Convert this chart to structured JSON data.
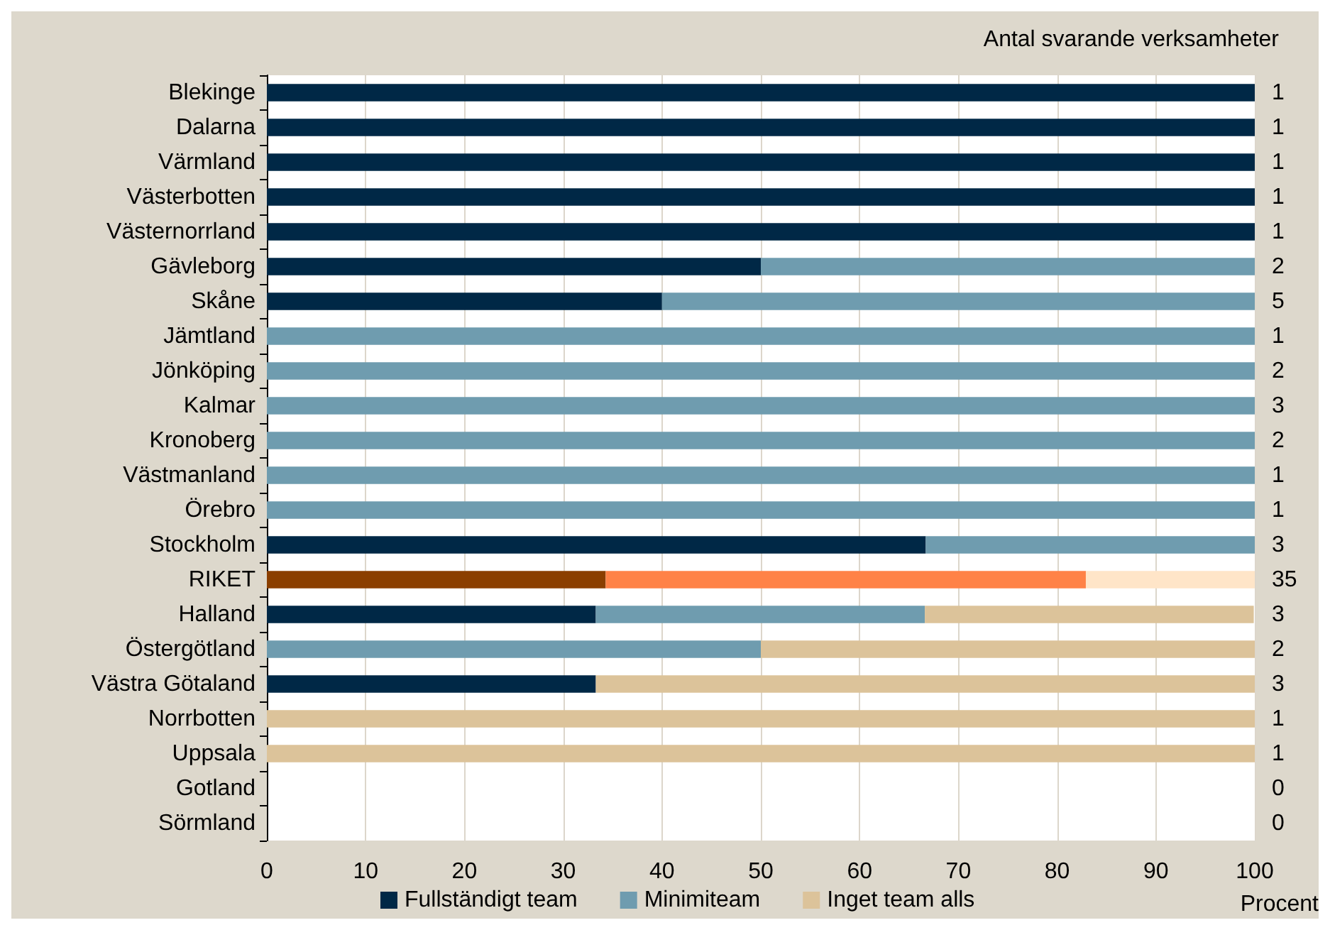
{
  "chart_data": {
    "type": "bar",
    "orientation": "horizontal",
    "stacked": true,
    "y2label": "Antal svarande verksamheter",
    "xlabel": "Procent",
    "categories": [
      "Blekinge",
      "Dalarna",
      "Värmland",
      "Västerbotten",
      "Västernorrland",
      "Gävleborg",
      "Skåne",
      "Jämtland",
      "Jönköping",
      "Kalmar",
      "Kronoberg",
      "Västmanland",
      "Örebro",
      "Stockholm",
      "RIKET",
      "Halland",
      "Östergötland",
      "Västra Götaland",
      "Norrbotten",
      "Uppsala",
      "Gotland",
      "Sörmland"
    ],
    "series": [
      {
        "name": "Fullständigt team",
        "color": "#002846",
        "values": [
          100,
          100,
          100,
          100,
          100,
          50,
          40,
          0,
          0,
          0,
          0,
          0,
          0,
          66.7,
          34.3,
          33.3,
          0,
          33.3,
          0,
          0,
          0,
          0
        ],
        "colors": [
          "#002846",
          "#002846",
          "#002846",
          "#002846",
          "#002846",
          "#002846",
          "#002846",
          "#002846",
          "#002846",
          "#002846",
          "#002846",
          "#002846",
          "#002846",
          "#002846",
          "#8b3f00",
          "#002846",
          "#002846",
          "#002846",
          "#002846",
          "#002846",
          "#002846",
          "#002846"
        ]
      },
      {
        "name": "Minimiteam",
        "color": "#6f9caf",
        "values": [
          0,
          0,
          0,
          0,
          0,
          50,
          60,
          100,
          100,
          100,
          100,
          100,
          100,
          33.3,
          48.6,
          33.3,
          50,
          0,
          0,
          0,
          0,
          0
        ],
        "colors": [
          "#6f9caf",
          "#6f9caf",
          "#6f9caf",
          "#6f9caf",
          "#6f9caf",
          "#6f9caf",
          "#6f9caf",
          "#6f9caf",
          "#6f9caf",
          "#6f9caf",
          "#6f9caf",
          "#6f9caf",
          "#6f9caf",
          "#6f9caf",
          "#ff8247",
          "#6f9caf",
          "#6f9caf",
          "#6f9caf",
          "#6f9caf",
          "#6f9caf",
          "#6f9caf",
          "#6f9caf"
        ]
      },
      {
        "name": "Inget team alls",
        "color": "#dcc39a",
        "values": [
          0,
          0,
          0,
          0,
          0,
          0,
          0,
          0,
          0,
          0,
          0,
          0,
          0,
          0,
          17.1,
          33.3,
          50,
          66.7,
          100,
          100,
          0,
          0
        ],
        "colors": [
          "#dcc39a",
          "#dcc39a",
          "#dcc39a",
          "#dcc39a",
          "#dcc39a",
          "#dcc39a",
          "#dcc39a",
          "#dcc39a",
          "#dcc39a",
          "#dcc39a",
          "#dcc39a",
          "#dcc39a",
          "#dcc39a",
          "#dcc39a",
          "#ffe5c8",
          "#dcc39a",
          "#dcc39a",
          "#dcc39a",
          "#dcc39a",
          "#dcc39a",
          "#dcc39a",
          "#dcc39a"
        ]
      }
    ],
    "annotations": [
      "1",
      "1",
      "1",
      "1",
      "1",
      "2",
      "5",
      "1",
      "2",
      "3",
      "2",
      "1",
      "1",
      "3",
      "35",
      "3",
      "2",
      "3",
      "1",
      "1",
      "0",
      "0"
    ],
    "xlim": [
      0,
      100
    ],
    "xticks": [
      0,
      10,
      20,
      30,
      40,
      50,
      60,
      70,
      80,
      90,
      100
    ],
    "grid": "x",
    "legend": "bottom"
  }
}
